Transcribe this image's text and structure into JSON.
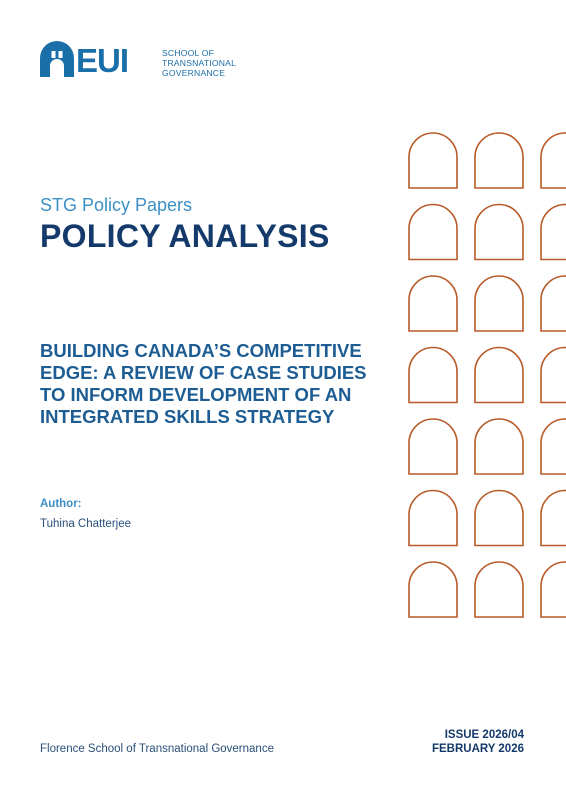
{
  "logo": {
    "letters": "EUI",
    "school_lines": [
      "SCHOOL OF",
      "TRANSNATIONAL",
      "GOVERNANCE"
    ],
    "color": "#1b6fa8"
  },
  "series": "STG Policy Papers",
  "doc_type": "POLICY ANALYSIS",
  "title_lines": [
    "BUILDING CANADA’S COMPETITIVE",
    "EDGE: A REVIEW OF CASE STUDIES",
    "TO INFORM DEVELOPMENT OF AN",
    "INTEGRATED SKILLS STRATEGY"
  ],
  "author": {
    "label": "Author:",
    "name": "Tuhina Chatterjee"
  },
  "footer": {
    "organization": "Florence School of Transnational Governance",
    "issue": "ISSUE 2026/04",
    "date": "FEBRUARY 2026"
  },
  "colors": {
    "navy": "#143a6b",
    "blue": "#1d5d93",
    "light_blue": "#3b8fc5",
    "arch": "#b85a28"
  }
}
